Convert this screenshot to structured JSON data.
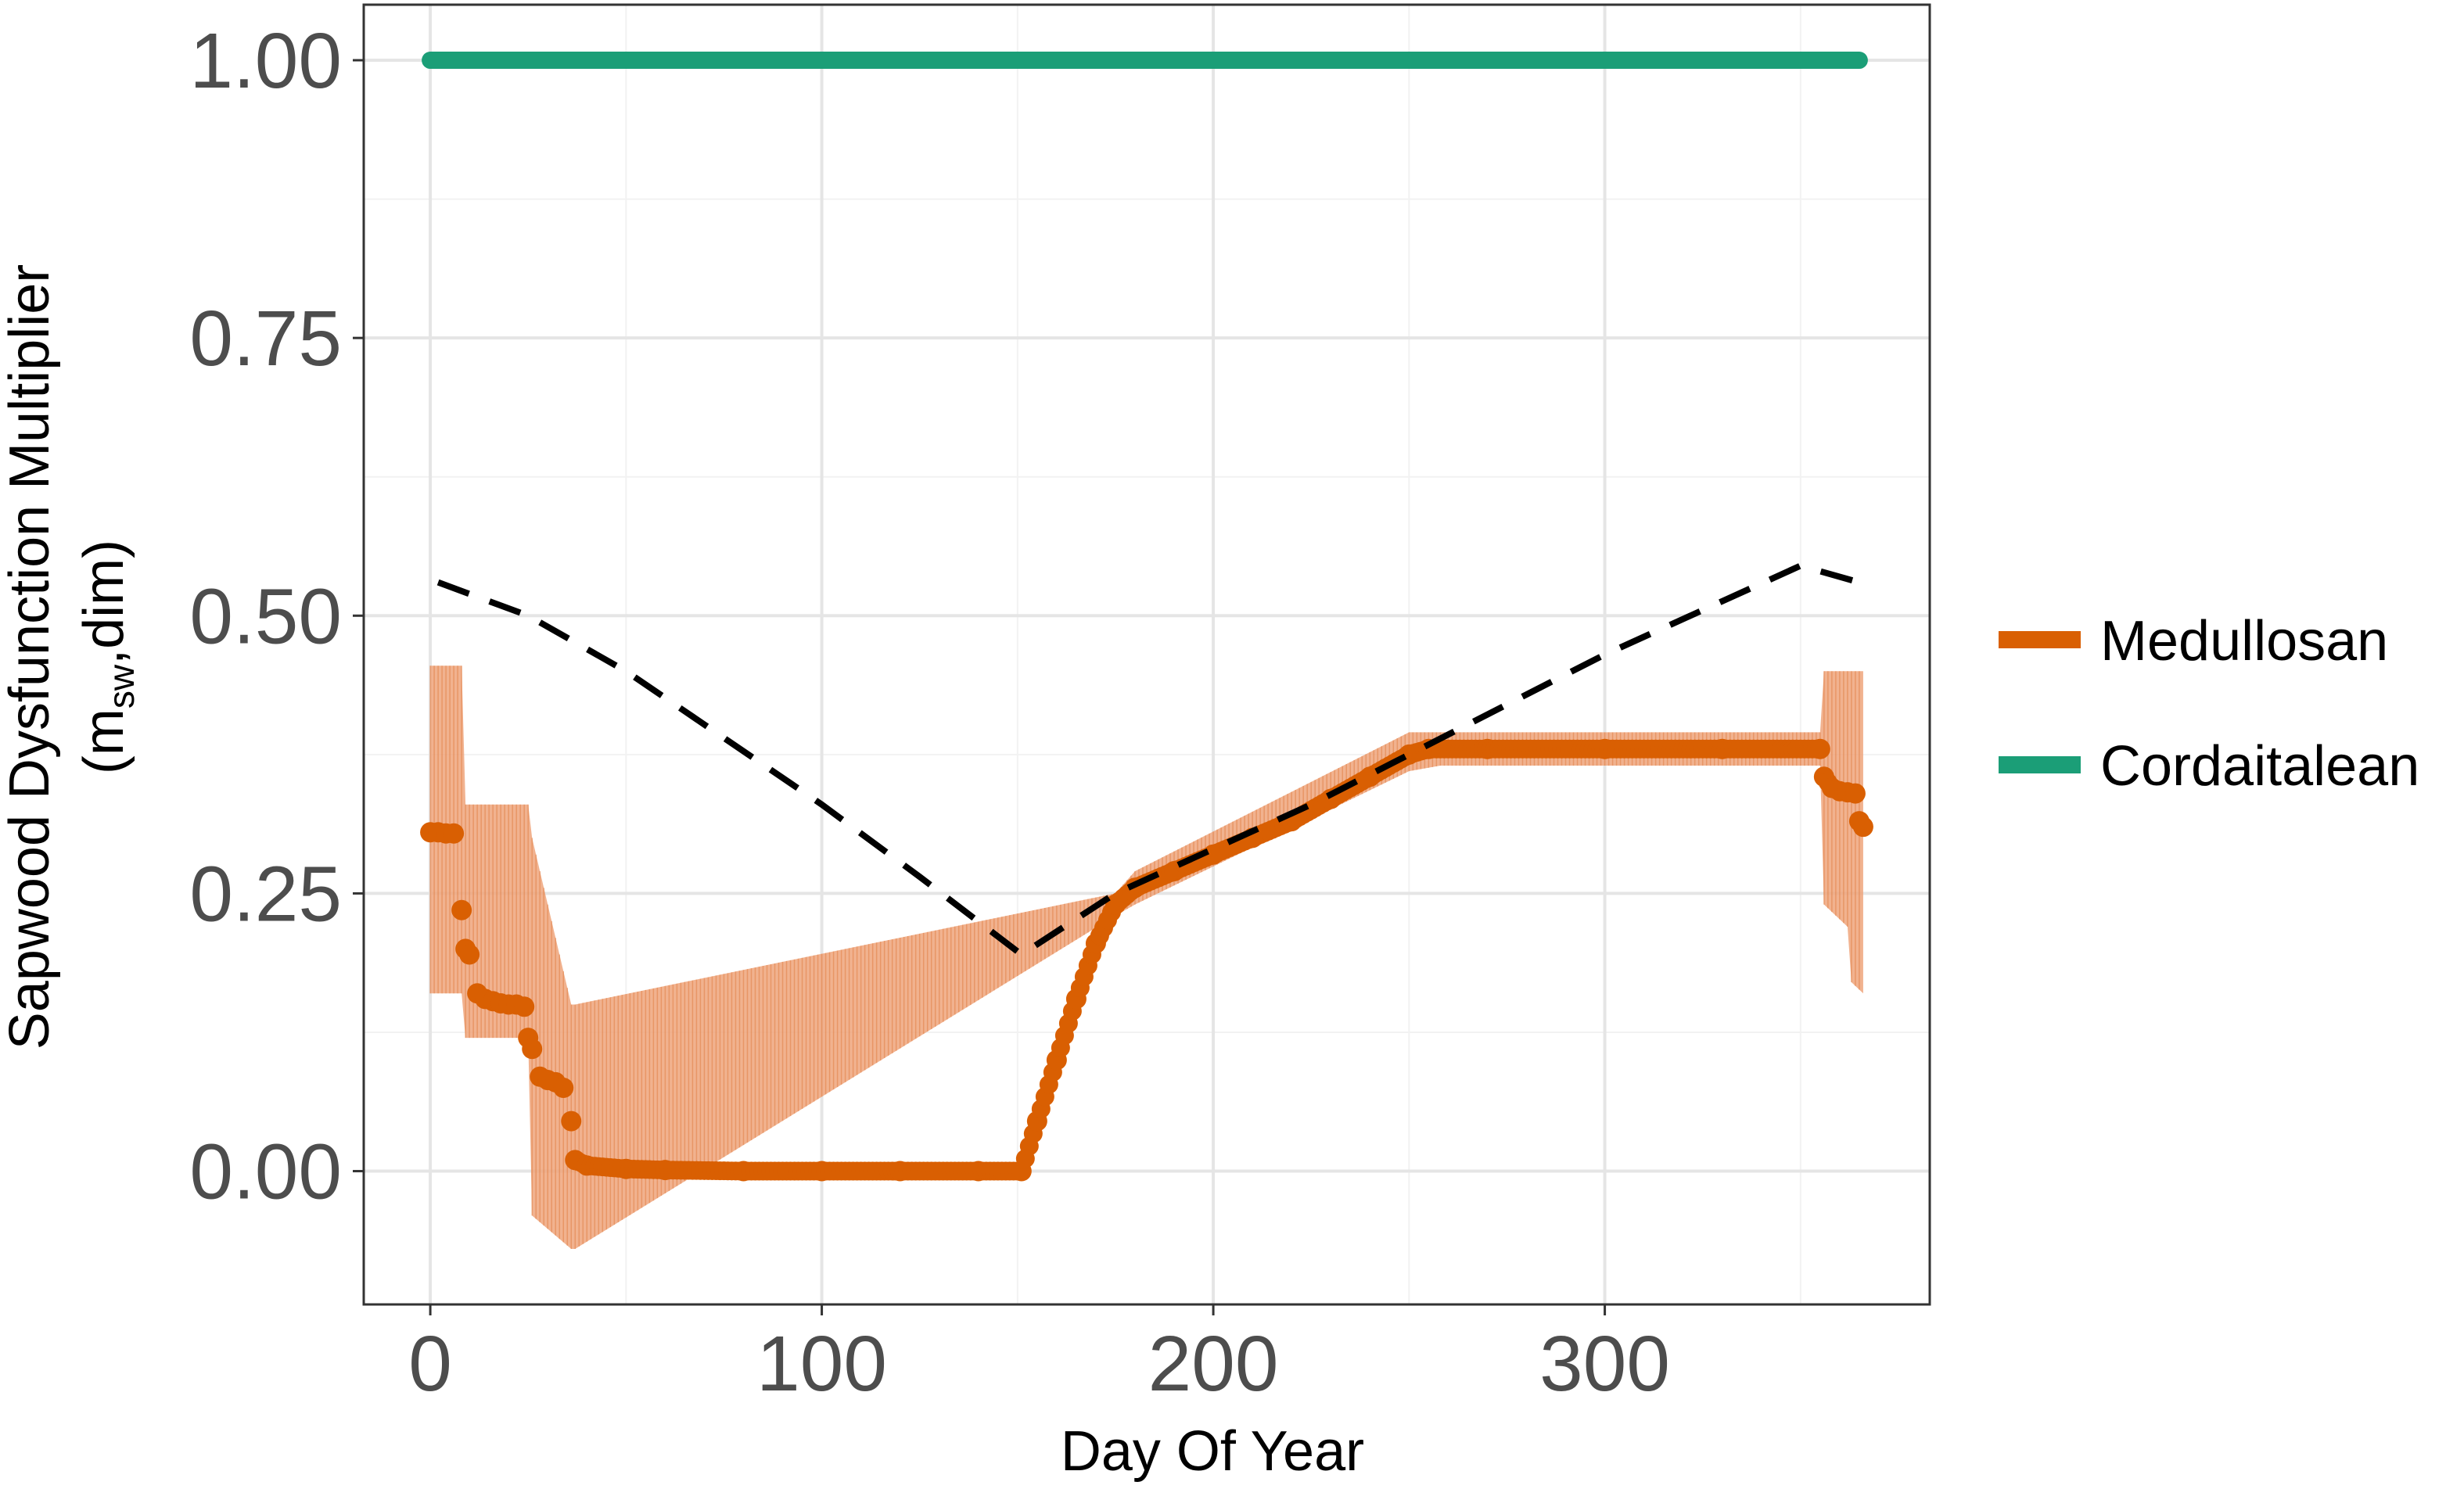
{
  "chart_data": {
    "type": "line",
    "xlabel": "Day Of Year",
    "ylabel_main": "Sapwood Dysfunction Multiplier",
    "ylabel_sub": {
      "open": "(m",
      "subscript": "sw",
      "rest": ",dim)"
    },
    "xlim": [
      -17,
      383
    ],
    "ylim": [
      -0.12,
      1.05
    ],
    "x_ticks": [
      0,
      100,
      200,
      300
    ],
    "x_tick_labels": [
      "0",
      "100",
      "200",
      "300"
    ],
    "y_ticks": [
      0,
      0.25,
      0.5,
      0.75,
      1.0
    ],
    "y_tick_labels": [
      "0.00",
      "0.25",
      "0.50",
      "0.75",
      "1.00"
    ],
    "grid": true,
    "legend_position": "right",
    "series": [
      {
        "name": "Cordaitalean",
        "style": "solid-thick",
        "color": "#1b9e77",
        "points": [
          [
            0,
            1.0
          ],
          [
            365,
            1.0
          ]
        ]
      },
      {
        "name": "Medullosan",
        "style": "points-with-band",
        "color": "#d95f02",
        "band_color": "#efa57b",
        "points": [
          [
            0,
            0.305
          ],
          [
            2,
            0.305
          ],
          [
            4,
            0.304
          ],
          [
            6,
            0.304
          ],
          [
            8,
            0.235
          ],
          [
            9,
            0.2
          ],
          [
            10,
            0.195
          ],
          [
            12,
            0.16
          ],
          [
            14,
            0.155
          ],
          [
            16,
            0.153
          ],
          [
            18,
            0.151
          ],
          [
            20,
            0.15
          ],
          [
            22,
            0.15
          ],
          [
            24,
            0.148
          ],
          [
            25,
            0.12
          ],
          [
            26,
            0.11
          ],
          [
            28,
            0.085
          ],
          [
            30,
            0.082
          ],
          [
            32,
            0.08
          ],
          [
            34,
            0.075
          ],
          [
            36,
            0.045
          ],
          [
            37,
            0.01
          ],
          [
            40,
            0.005
          ],
          [
            50,
            0.002
          ],
          [
            60,
            0.001
          ],
          [
            80,
            0.0
          ],
          [
            100,
            0.0
          ],
          [
            120,
            0.0
          ],
          [
            140,
            0.0
          ],
          [
            151,
            0.0
          ],
          [
            155,
            0.045
          ],
          [
            160,
            0.1
          ],
          [
            165,
            0.155
          ],
          [
            170,
            0.205
          ],
          [
            175,
            0.24
          ],
          [
            180,
            0.255
          ],
          [
            190,
            0.27
          ],
          [
            200,
            0.285
          ],
          [
            210,
            0.3
          ],
          [
            220,
            0.315
          ],
          [
            230,
            0.335
          ],
          [
            240,
            0.355
          ],
          [
            250,
            0.375
          ],
          [
            255,
            0.38
          ],
          [
            270,
            0.38
          ],
          [
            300,
            0.38
          ],
          [
            330,
            0.38
          ],
          [
            355,
            0.38
          ],
          [
            356,
            0.355
          ],
          [
            358,
            0.345
          ],
          [
            360,
            0.342
          ],
          [
            362,
            0.341
          ],
          [
            364,
            0.34
          ],
          [
            365,
            0.315
          ],
          [
            366,
            0.31
          ]
        ],
        "band": [
          [
            0,
            0.16,
            0.455
          ],
          [
            8,
            0.16,
            0.455
          ],
          [
            9,
            0.12,
            0.33
          ],
          [
            25,
            0.12,
            0.33
          ],
          [
            26,
            -0.04,
            0.3
          ],
          [
            36,
            -0.07,
            0.15
          ],
          [
            37,
            -0.07,
            0.15
          ],
          [
            175,
            0.23,
            0.25
          ],
          [
            180,
            0.24,
            0.27
          ],
          [
            250,
            0.36,
            0.395
          ],
          [
            258,
            0.365,
            0.395
          ],
          [
            355,
            0.365,
            0.395
          ],
          [
            356,
            0.24,
            0.45
          ],
          [
            362,
            0.22,
            0.45
          ],
          [
            363,
            0.17,
            0.45
          ],
          [
            366,
            0.16,
            0.45
          ]
        ]
      },
      {
        "name": "",
        "style": "dashed",
        "color": "#000000",
        "points": [
          [
            2,
            0.53
          ],
          [
            25,
            0.5
          ],
          [
            50,
            0.45
          ],
          [
            75,
            0.39
          ],
          [
            100,
            0.33
          ],
          [
            125,
            0.265
          ],
          [
            151,
            0.195
          ],
          [
            175,
            0.25
          ],
          [
            200,
            0.29
          ],
          [
            225,
            0.33
          ],
          [
            250,
            0.375
          ],
          [
            275,
            0.42
          ],
          [
            300,
            0.465
          ],
          [
            325,
            0.505
          ],
          [
            350,
            0.545
          ],
          [
            365,
            0.53
          ]
        ]
      }
    ],
    "legend": [
      {
        "label": "Medullosan",
        "color": "#d95f02"
      },
      {
        "label": "Cordaitalean",
        "color": "#1b9e77"
      }
    ]
  }
}
